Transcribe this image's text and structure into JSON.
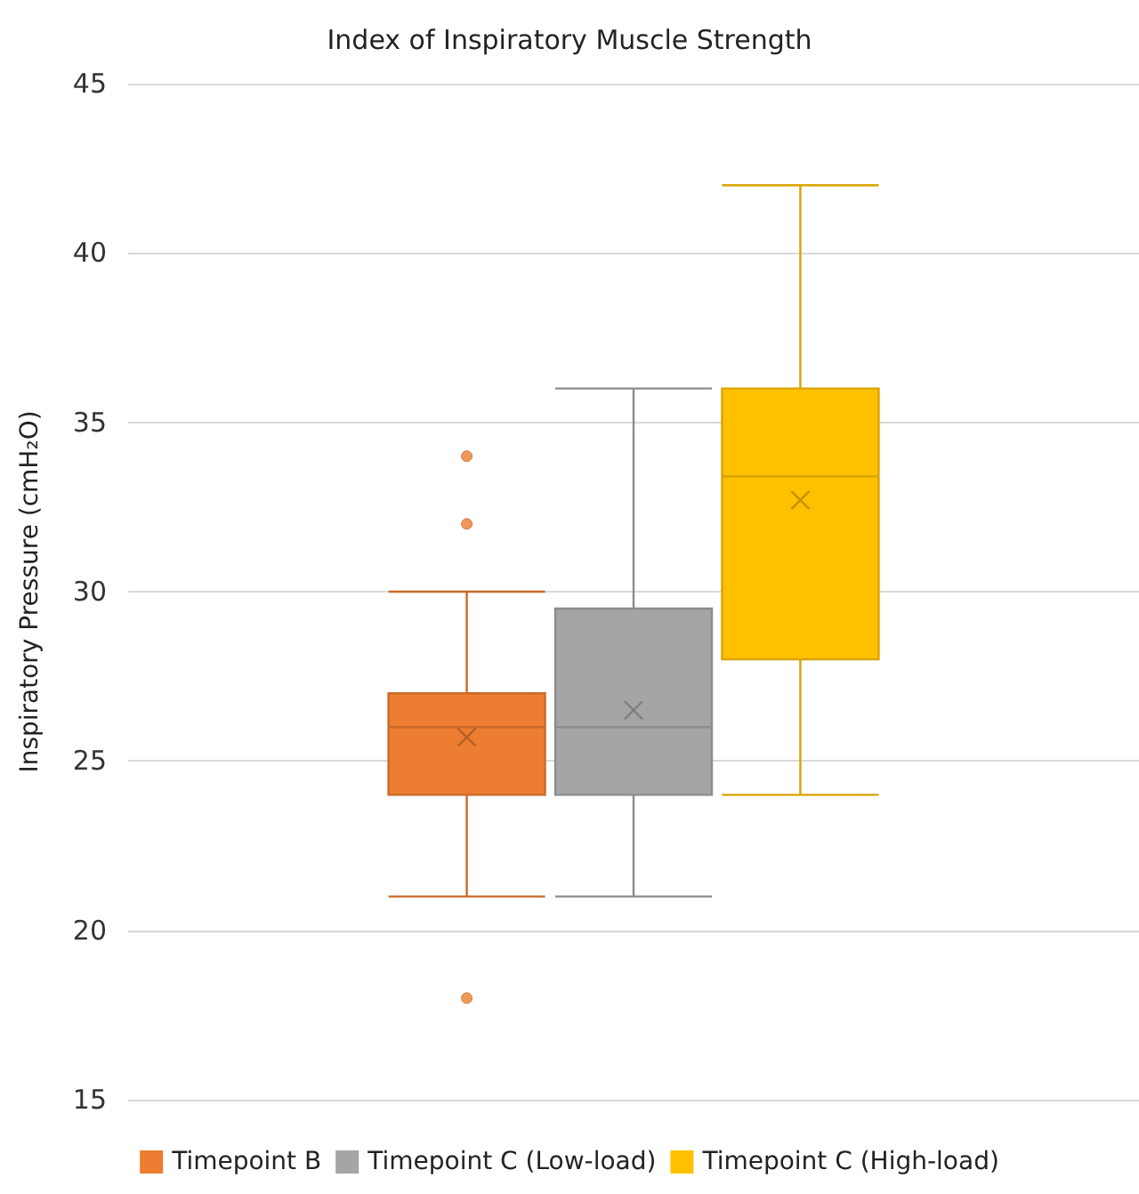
{
  "chart_data": {
    "type": "box",
    "title": "Index of Inspiratory Muscle Strength",
    "ylabel": "Inspiratory Pressure (cmH₂O)",
    "categories": [
      null
    ],
    "series": [
      {
        "name": "Timepoint B",
        "color": "#ed7d31",
        "boxes": [
          {
            "low": 21,
            "q1": 24,
            "median": 26,
            "q3": 27,
            "high": 30,
            "mean": 25.7,
            "outliers": [
              32,
              34,
              18
            ]
          }
        ]
      },
      {
        "name": "Timepoint C (Low-load)",
        "color": "#a5a5a5",
        "boxes": [
          {
            "low": 21,
            "q1": 24,
            "median": 26,
            "q3": 29.5,
            "high": 36,
            "mean": 26.5
          }
        ]
      },
      {
        "name": "Timepoint C (High-load)",
        "color": "#ffc000",
        "boxes": [
          {
            "low": 24,
            "q1": 28,
            "median": 33.4,
            "q3": 36,
            "high": 42,
            "mean": 32.7
          }
        ]
      }
    ],
    "ylim": [
      15,
      45
    ],
    "yticks": [
      15,
      20,
      25,
      30,
      35,
      40,
      45
    ],
    "grid": "y",
    "legend": "bottom"
  }
}
